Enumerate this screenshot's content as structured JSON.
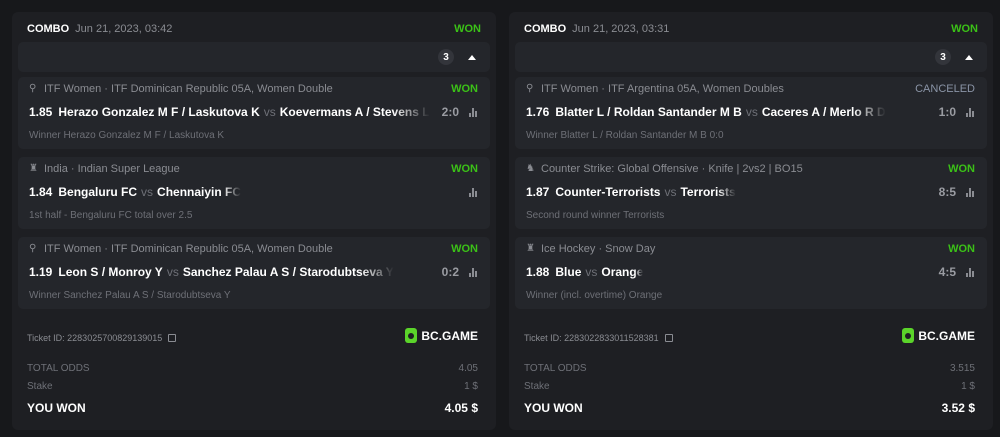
{
  "tickets": [
    {
      "type": "COMBO",
      "date": "Jun 21, 2023, 03:42",
      "status": "WON",
      "count": "3",
      "bets": [
        {
          "icon": "tennis-icon",
          "sport": "ITF Women · ITF Dominican Republic 05A, Women Double",
          "status": "WON",
          "odds": "1.85",
          "home": "Herazo Gonzalez M F / Laskutova K",
          "vs": "vs",
          "away": "Koevermans A / Stevens L",
          "score": "2:0",
          "market": "Winner Herazo Gonzalez M F / Laskutova K"
        },
        {
          "icon": "cricket-icon",
          "sport": "India · Indian Super League",
          "status": "WON",
          "odds": "1.84",
          "home": "Bengaluru FC",
          "vs": "vs",
          "away": "Chennaiyin FC",
          "score": "",
          "market": "1st half - Bengaluru FC total over 2.5"
        },
        {
          "icon": "tennis-icon",
          "sport": "ITF Women · ITF Dominican Republic 05A, Women Double",
          "status": "WON",
          "odds": "1.19",
          "home": "Leon S / Monroy Y",
          "vs": "vs",
          "away": "Sanchez Palau A S / Starodubtseva Y",
          "score": "0:2",
          "market": "Winner Sanchez Palau A S / Starodubtseva Y"
        }
      ],
      "ticket_id": "Ticket ID: 2283025700829139015",
      "brand": "BC.GAME",
      "total_odds_label": "TOTAL ODDS",
      "total_odds": "4.05",
      "stake_label": "Stake",
      "stake": "1 $",
      "won_label": "YOU WON",
      "won": "4.05 $"
    },
    {
      "type": "COMBO",
      "date": "Jun 21, 2023, 03:31",
      "status": "WON",
      "count": "3",
      "bets": [
        {
          "icon": "tennis-icon",
          "sport": "ITF Women · ITF Argentina 05A, Women Doubles",
          "status": "CANCELED",
          "odds": "1.76",
          "home": "Blatter L / Roldan Santander M B",
          "vs": "vs",
          "away": "Caceres A / Merlo R D",
          "score": "1:0",
          "market": "Winner Blatter L / Roldan Santander M B  0:0"
        },
        {
          "icon": "counter-strike-icon",
          "sport": "Counter Strike: Global Offensive · Knife | 2vs2 | BO15",
          "status": "WON",
          "odds": "1.87",
          "home": "Counter-Terrorists",
          "vs": "vs",
          "away": "Terrorists",
          "score": "8:5",
          "market": "Second round winner Terrorists"
        },
        {
          "icon": "ice-hockey-icon",
          "sport": "Ice Hockey · Snow Day",
          "status": "WON",
          "odds": "1.88",
          "home": "Blue",
          "vs": "vs",
          "away": "Orange",
          "score": "4:5",
          "market": "Winner (incl. overtime) Orange"
        }
      ],
      "ticket_id": "Ticket ID: 2283022833011528381",
      "brand": "BC.GAME",
      "total_odds_label": "TOTAL ODDS",
      "total_odds": "3.515",
      "stake_label": "Stake",
      "stake": "1 $",
      "won_label": "YOU WON",
      "won": "3.52 $"
    }
  ],
  "colors": {
    "won": "#3bc117",
    "canceled": "#8a94a6",
    "brand": "#5bd42a"
  }
}
